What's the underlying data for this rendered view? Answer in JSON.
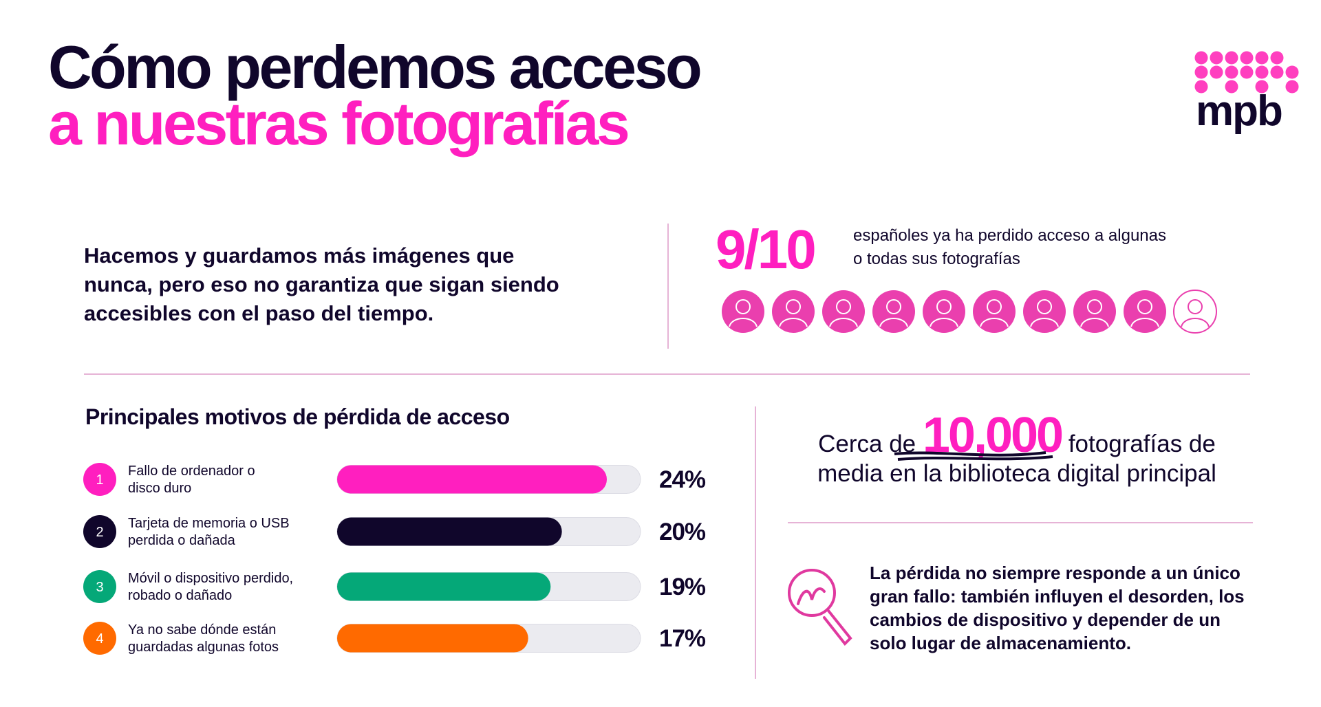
{
  "header": {
    "title_line1": "Cómo perdemos acceso",
    "title_line2": "a nuestras fotografías",
    "logo": "mpb"
  },
  "intro": [
    "Hacemos y guardamos más imágenes que",
    "nunca, pero eso no garantiza que sigan siendo",
    "accesibles con el paso del tiempo."
  ],
  "stat": {
    "value": "9/10",
    "text": [
      "españoles ya ha perdido acceso a algunas",
      "o todas sus fotografías"
    ]
  },
  "chart_data": {
    "type": "bar",
    "orientation": "horizontal",
    "title": "Principales motivos de pérdida de acceso",
    "ranks": [
      "1",
      "2",
      "3",
      "4"
    ],
    "categories": [
      [
        "Fallo de ordenador o",
        "disco duro"
      ],
      [
        "Tarjeta de memoria o USB",
        "perdida o dañada"
      ],
      [
        "Móvil o dispositivo perdido,",
        "robado o dañado"
      ],
      [
        "Ya no sabe dónde están",
        "guardadas algunas fotos"
      ]
    ],
    "values": [
      24,
      20,
      19,
      17
    ],
    "value_labels": [
      "24%",
      "20%",
      "19%",
      "17%"
    ],
    "colors": [
      "#ff1fbf",
      "#10062b",
      "#05a878",
      "#ff6a00"
    ],
    "xlim": [
      0,
      27
    ]
  },
  "photos": {
    "prefix": "Cerca de",
    "value": "10,000",
    "suffix": "fotografías de",
    "line2": "media en la biblioteca digital principal"
  },
  "note": [
    "La pérdida no siempre responde a un único",
    "gran fallo: también influyen el desorden, los",
    "cambios de dispositivo y depender de un",
    "solo lugar de almacenamiento."
  ]
}
